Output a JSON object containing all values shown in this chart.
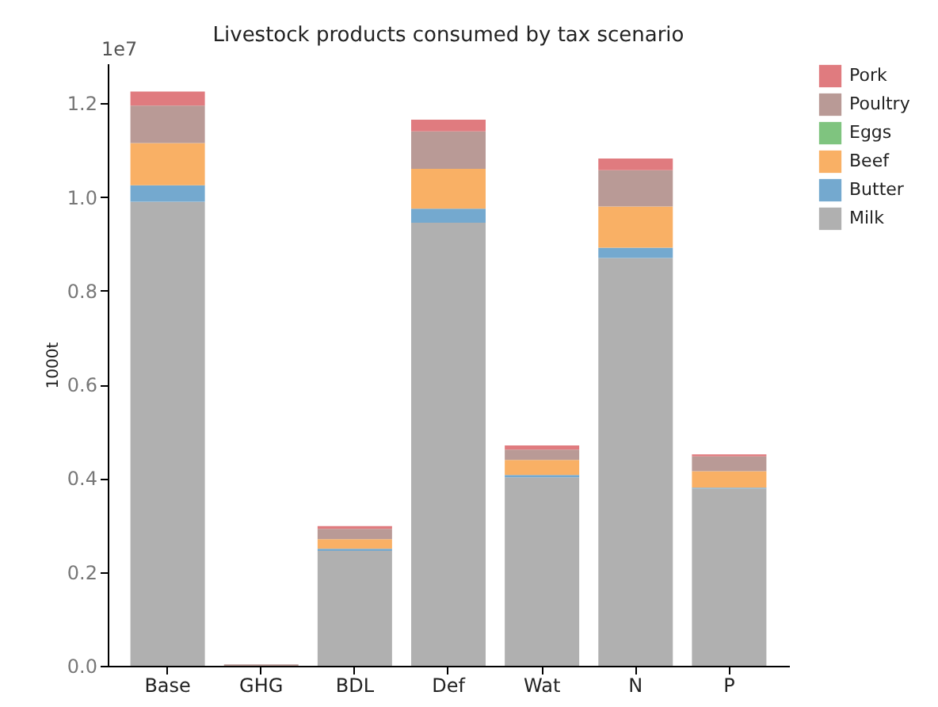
{
  "chart_data": {
    "type": "bar",
    "title": "Livestock products consumed by tax scenario",
    "ylabel": "1000t",
    "annotations": [
      "1e7"
    ],
    "categories": [
      "Base",
      "GHG",
      "BDL",
      "Def",
      "Wat",
      "N",
      "P"
    ],
    "stacked": true,
    "series": [
      {
        "name": "Milk",
        "color": "#b0b0b0",
        "values": [
          0.99,
          null,
          0.245,
          0.945,
          0.402,
          0.87,
          0.378
        ]
      },
      {
        "name": "Butter",
        "color": "#74a9cf",
        "values": [
          0.035,
          0,
          0.005,
          0.03,
          0.005,
          0.022,
          0.002
        ]
      },
      {
        "name": "Beef",
        "color": "#f9b065",
        "values": [
          0.09,
          0,
          0.02,
          0.085,
          0.032,
          0.088,
          0.035
        ]
      },
      {
        "name": "Eggs",
        "color": "#7fc47f",
        "values": [
          0,
          0,
          0,
          0,
          0,
          0,
          0
        ]
      },
      {
        "name": "Poultry",
        "color": "#b99a96",
        "values": [
          0.08,
          0.003,
          0.022,
          0.08,
          0.022,
          0.077,
          0.032
        ]
      },
      {
        "name": "Pork",
        "color": "#e07b7f",
        "values": [
          0.03,
          0,
          0.006,
          0.025,
          0.009,
          0.025,
          0.004
        ]
      }
    ],
    "ylim": [
      0,
      1.285
    ],
    "yticks": [
      {
        "value": 0,
        "label": "0.0"
      },
      0.2,
      0.4,
      0.6,
      0.8,
      {
        "value": 1,
        "label": "1.0"
      },
      1.2
    ],
    "grid": false,
    "legend": "top right"
  }
}
